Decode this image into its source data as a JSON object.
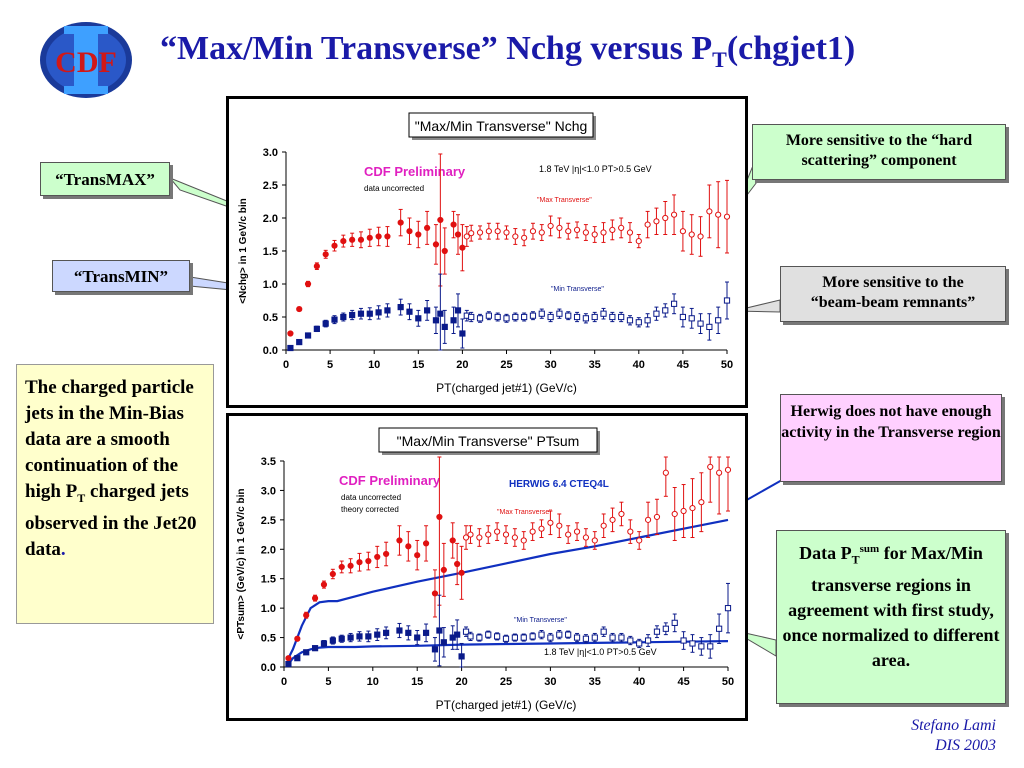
{
  "slide": {
    "title_main": "“Max/Min Transverse” Nchg versus P",
    "title_sub": "T",
    "title_tail": "(chgjet1)",
    "logo_text": "CDF",
    "credit_author": "Stefano Lami",
    "credit_event": "DIS 2003"
  },
  "callouts": {
    "transmax": "“TransMAX”",
    "transmin": "“TransMIN”",
    "hard": "More sensitive to the “hard scattering” component",
    "beam_1": "More sensitive to the",
    "beam_2": "“beam-beam remnants”",
    "herwig": "Herwig does not have enough activity in the Transverse region",
    "agree_pre": "Data P",
    "agree_sub": "T",
    "agree_sup": "sum",
    "agree_post": " for Max/Min transverse regions in agreement with first study, once normalized to different area.",
    "text_pre": "The charged particle jets in the Min-Bias data are a smooth continuation of the high P",
    "text_sub": "T",
    "text_post": " charged jets observed in the Jet20 data",
    "text_dot": "."
  },
  "colors": {
    "title": "#1a1aa8",
    "max": "#e01010",
    "min": "#0a1a8a",
    "herwig": "#1030c0",
    "prelim": "#e020c0"
  },
  "chart_data": [
    {
      "type": "scatter",
      "title": "\"Max/Min Transverse\" Nchg",
      "xlabel": "PT(charged jet#1)  (GeV/c)",
      "ylabel": "<Nchg> in 1 GeV/c bin",
      "xlim": [
        0,
        50
      ],
      "ylim": [
        0,
        3
      ],
      "xticks": [
        "0",
        "5",
        "10",
        "15",
        "20",
        "25",
        "30",
        "35",
        "40",
        "45",
        "50"
      ],
      "yticks": [
        "0.0",
        "0.5",
        "1.0",
        "1.5",
        "2.0",
        "2.5",
        "3.0"
      ],
      "annotations": {
        "prelim": "CDF Preliminary",
        "note1": "data uncorrected",
        "note2": "",
        "cuts": "1.8 TeV |η|<1.0 PT>0.5 GeV",
        "herwig": ""
      },
      "series": [
        {
          "name": "\"Max Transverse\"",
          "color": "#e01010",
          "marker": "circle",
          "x": [
            0.5,
            1.5,
            2.5,
            3.5,
            4.5,
            5.5,
            6.5,
            7.5,
            8.5,
            9.5,
            10.5,
            11.5,
            13,
            14,
            15,
            16,
            17,
            17.5,
            18,
            19,
            19.5,
            20,
            20.5,
            21,
            22,
            23,
            24,
            25,
            26,
            27,
            28,
            29,
            30,
            31,
            32,
            33,
            34,
            35,
            36,
            37,
            38,
            39,
            40,
            41,
            42,
            43,
            44,
            45,
            46,
            47,
            48,
            49,
            50
          ],
          "y": [
            0.25,
            0.62,
            1.0,
            1.27,
            1.45,
            1.58,
            1.65,
            1.67,
            1.67,
            1.7,
            1.72,
            1.72,
            1.93,
            1.8,
            1.75,
            1.85,
            1.6,
            1.97,
            1.5,
            1.9,
            1.75,
            1.55,
            1.72,
            1.77,
            1.78,
            1.8,
            1.8,
            1.78,
            1.72,
            1.7,
            1.8,
            1.78,
            1.88,
            1.85,
            1.8,
            1.82,
            1.78,
            1.75,
            1.78,
            1.82,
            1.85,
            1.78,
            1.65,
            1.9,
            1.95,
            2.0,
            2.05,
            1.8,
            1.75,
            1.72,
            2.1,
            2.05,
            2.02
          ],
          "err": [
            0.02,
            0.03,
            0.04,
            0.05,
            0.06,
            0.08,
            0.09,
            0.1,
            0.12,
            0.13,
            0.14,
            0.15,
            0.2,
            0.2,
            0.2,
            0.25,
            0.3,
            1.0,
            0.35,
            0.2,
            0.3,
            0.35,
            0.15,
            0.12,
            0.1,
            0.12,
            0.12,
            0.1,
            0.12,
            0.12,
            0.12,
            0.12,
            0.15,
            0.15,
            0.12,
            0.12,
            0.12,
            0.12,
            0.15,
            0.15,
            0.15,
            0.15,
            0.1,
            0.2,
            0.2,
            0.25,
            0.3,
            0.3,
            0.3,
            0.3,
            0.4,
            0.5,
            0.55
          ]
        },
        {
          "name": "\"Min Transverse\"",
          "color": "#0a1a8a",
          "marker": "square",
          "x": [
            0.5,
            1.5,
            2.5,
            3.5,
            4.5,
            5.5,
            6.5,
            7.5,
            8.5,
            9.5,
            10.5,
            11.5,
            13,
            14,
            15,
            16,
            17,
            17.5,
            18,
            19,
            19.5,
            20,
            20.5,
            21,
            22,
            23,
            24,
            25,
            26,
            27,
            28,
            29,
            30,
            31,
            32,
            33,
            34,
            35,
            36,
            37,
            38,
            39,
            40,
            41,
            42,
            43,
            44,
            45,
            46,
            47,
            48,
            49,
            50
          ],
          "y": [
            0.03,
            0.12,
            0.22,
            0.32,
            0.4,
            0.46,
            0.5,
            0.53,
            0.55,
            0.55,
            0.57,
            0.6,
            0.65,
            0.58,
            0.48,
            0.6,
            0.45,
            0.55,
            0.35,
            0.45,
            0.6,
            0.25,
            0.52,
            0.5,
            0.48,
            0.52,
            0.5,
            0.48,
            0.5,
            0.5,
            0.52,
            0.55,
            0.5,
            0.55,
            0.52,
            0.5,
            0.48,
            0.5,
            0.55,
            0.5,
            0.5,
            0.45,
            0.42,
            0.45,
            0.55,
            0.6,
            0.7,
            0.5,
            0.48,
            0.4,
            0.35,
            0.45,
            0.75
          ],
          "err": [
            0.01,
            0.02,
            0.03,
            0.04,
            0.05,
            0.06,
            0.06,
            0.07,
            0.08,
            0.09,
            0.1,
            0.1,
            0.12,
            0.12,
            0.12,
            0.15,
            0.2,
            0.6,
            0.25,
            0.2,
            0.25,
            0.22,
            0.08,
            0.07,
            0.06,
            0.06,
            0.06,
            0.06,
            0.06,
            0.06,
            0.06,
            0.07,
            0.07,
            0.07,
            0.06,
            0.07,
            0.07,
            0.07,
            0.08,
            0.07,
            0.07,
            0.07,
            0.07,
            0.1,
            0.1,
            0.1,
            0.15,
            0.15,
            0.15,
            0.15,
            0.2,
            0.2,
            0.28
          ]
        }
      ]
    },
    {
      "type": "scatter",
      "title": "\"Max/Min Transverse\" PTsum",
      "xlabel": "PT(charged jet#1)  (GeV/c)",
      "ylabel": "<PTsum> (GeV/c) in 1 GeV/c bin",
      "xlim": [
        0,
        50
      ],
      "ylim": [
        0,
        3.5
      ],
      "xticks": [
        "0",
        "5",
        "10",
        "15",
        "20",
        "25",
        "30",
        "35",
        "40",
        "45",
        "50"
      ],
      "yticks": [
        "0.0",
        "0.5",
        "1.0",
        "1.5",
        "2.0",
        "2.5",
        "3.0",
        "3.5"
      ],
      "annotations": {
        "prelim": "CDF Preliminary",
        "note1": "data uncorrected",
        "note2": "theory corrected",
        "cuts": "1.8 TeV |η|<1.0 PT>0.5 GeV",
        "herwig": "HERWIG 6.4 CTEQ4L"
      },
      "series": [
        {
          "name": "\"Max Transverse\"",
          "color": "#e01010",
          "marker": "circle",
          "x": [
            0.5,
            1.5,
            2.5,
            3.5,
            4.5,
            5.5,
            6.5,
            7.5,
            8.5,
            9.5,
            10.5,
            11.5,
            13,
            14,
            15,
            16,
            17,
            17.5,
            18,
            19,
            19.5,
            20,
            20.5,
            21,
            22,
            23,
            24,
            25,
            26,
            27,
            28,
            29,
            30,
            31,
            32,
            33,
            34,
            35,
            36,
            37,
            38,
            39,
            40,
            41,
            42,
            43,
            44,
            45,
            46,
            47,
            48,
            49,
            50
          ],
          "y": [
            0.15,
            0.48,
            0.88,
            1.17,
            1.4,
            1.58,
            1.7,
            1.72,
            1.78,
            1.8,
            1.87,
            1.92,
            2.15,
            2.05,
            1.9,
            2.1,
            1.25,
            2.55,
            1.65,
            2.15,
            1.75,
            1.6,
            2.2,
            2.25,
            2.2,
            2.25,
            2.3,
            2.25,
            2.2,
            2.15,
            2.3,
            2.35,
            2.45,
            2.4,
            2.25,
            2.3,
            2.2,
            2.15,
            2.4,
            2.5,
            2.6,
            2.3,
            2.15,
            2.5,
            2.55,
            3.3,
            2.6,
            2.65,
            2.7,
            2.8,
            3.4,
            3.3,
            3.35
          ],
          "err": [
            0.02,
            0.03,
            0.05,
            0.05,
            0.06,
            0.08,
            0.1,
            0.12,
            0.15,
            0.15,
            0.18,
            0.2,
            0.25,
            0.25,
            0.25,
            0.3,
            0.4,
            1.5,
            0.45,
            0.3,
            0.35,
            0.45,
            0.2,
            0.15,
            0.15,
            0.15,
            0.15,
            0.15,
            0.15,
            0.15,
            0.15,
            0.15,
            0.2,
            0.2,
            0.15,
            0.15,
            0.15,
            0.15,
            0.2,
            0.2,
            0.2,
            0.2,
            0.15,
            0.3,
            0.3,
            0.4,
            0.45,
            0.45,
            0.5,
            0.5,
            0.6,
            0.7,
            0.7
          ]
        },
        {
          "name": "\"Min Transverse\"",
          "color": "#0a1a8a",
          "marker": "square",
          "x": [
            0.5,
            1.5,
            2.5,
            3.5,
            4.5,
            5.5,
            6.5,
            7.5,
            8.5,
            9.5,
            10.5,
            11.5,
            13,
            14,
            15,
            16,
            17,
            17.5,
            18,
            19,
            19.5,
            20,
            20.5,
            21,
            22,
            23,
            24,
            25,
            26,
            27,
            28,
            29,
            30,
            31,
            32,
            33,
            34,
            35,
            36,
            37,
            38,
            39,
            40,
            41,
            42,
            43,
            44,
            45,
            46,
            47,
            48,
            49,
            50
          ],
          "y": [
            0.05,
            0.15,
            0.25,
            0.32,
            0.4,
            0.45,
            0.48,
            0.5,
            0.52,
            0.52,
            0.55,
            0.58,
            0.62,
            0.58,
            0.5,
            0.58,
            0.3,
            0.62,
            0.42,
            0.5,
            0.55,
            0.18,
            0.6,
            0.52,
            0.5,
            0.55,
            0.52,
            0.48,
            0.5,
            0.5,
            0.52,
            0.55,
            0.5,
            0.55,
            0.55,
            0.5,
            0.48,
            0.5,
            0.6,
            0.5,
            0.5,
            0.45,
            0.4,
            0.45,
            0.6,
            0.65,
            0.75,
            0.45,
            0.4,
            0.35,
            0.35,
            0.65,
            1.0
          ],
          "err": [
            0.01,
            0.02,
            0.03,
            0.04,
            0.05,
            0.06,
            0.06,
            0.07,
            0.08,
            0.09,
            0.1,
            0.1,
            0.12,
            0.12,
            0.12,
            0.15,
            0.2,
            0.6,
            0.25,
            0.2,
            0.25,
            0.22,
            0.08,
            0.07,
            0.06,
            0.06,
            0.06,
            0.06,
            0.06,
            0.06,
            0.06,
            0.07,
            0.07,
            0.07,
            0.06,
            0.07,
            0.07,
            0.07,
            0.08,
            0.07,
            0.07,
            0.07,
            0.07,
            0.1,
            0.1,
            0.1,
            0.15,
            0.15,
            0.15,
            0.15,
            0.2,
            0.25,
            0.42
          ]
        }
      ],
      "curves": [
        {
          "name": "",
          "color": "#1030c0",
          "x": [
            0.5,
            1,
            2,
            3,
            4,
            5,
            6,
            8,
            10,
            15,
            20,
            25,
            30,
            35,
            40,
            45,
            50
          ],
          "y": [
            0.15,
            0.3,
            0.7,
            1.0,
            1.1,
            1.12,
            1.12,
            1.2,
            1.28,
            1.45,
            1.6,
            1.76,
            1.92,
            2.05,
            2.2,
            2.35,
            2.5
          ]
        },
        {
          "name": "",
          "color": "#1030c0",
          "x": [
            0.5,
            1,
            2,
            3,
            4,
            5,
            6,
            8,
            10,
            15,
            20,
            25,
            30,
            35,
            40,
            45,
            50
          ],
          "y": [
            0.05,
            0.15,
            0.25,
            0.3,
            0.33,
            0.34,
            0.34,
            0.34,
            0.35,
            0.36,
            0.38,
            0.39,
            0.4,
            0.41,
            0.42,
            0.43,
            0.44
          ]
        }
      ]
    }
  ]
}
